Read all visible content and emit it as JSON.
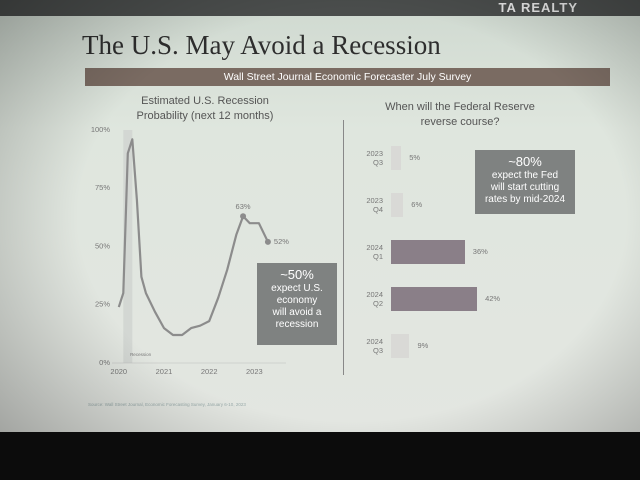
{
  "header": {
    "logo": "TA REALTY",
    "title": "The U.S. May Avoid a Recession",
    "banner": "Wall Street Journal Economic Forecaster July Survey"
  },
  "chart_data": [
    {
      "type": "line",
      "title": "Estimated U.S. Recession\nProbability (next 12 months)",
      "x": [
        2020.0,
        2020.1,
        2020.2,
        2020.3,
        2020.4,
        2020.5,
        2020.6,
        2020.8,
        2021.0,
        2021.2,
        2021.4,
        2021.6,
        2021.8,
        2022.0,
        2022.2,
        2022.4,
        2022.6,
        2022.75,
        2022.9,
        2023.1,
        2023.3
      ],
      "series": [
        {
          "name": "Recession probability",
          "color": "#8c8c8c",
          "values": [
            24,
            30,
            90,
            96,
            70,
            37,
            30,
            22,
            15,
            12,
            12,
            15,
            16,
            18,
            28,
            40,
            55,
            63,
            60,
            60,
            52
          ],
          "value_labels": [
            null,
            null,
            null,
            null,
            null,
            null,
            null,
            null,
            null,
            null,
            null,
            null,
            null,
            null,
            null,
            null,
            null,
            "63%",
            null,
            null,
            "52%"
          ]
        }
      ],
      "xlim": [
        2019.85,
        2023.7
      ],
      "xticks": [
        2020,
        2021,
        2022,
        2023
      ],
      "ylim": [
        0,
        100
      ],
      "yticks": [
        {
          "value": 0,
          "label": "0%"
        },
        {
          "value": 25,
          "label": "25%"
        },
        {
          "value": 50,
          "label": "50%"
        },
        {
          "value": 75,
          "label": "75%"
        },
        {
          "value": 100,
          "label": "100%"
        }
      ],
      "annotation": "Recession"
    },
    {
      "type": "hbar",
      "title": "When will the Federal Reserve\nreverse course?",
      "categories": [
        "2023\nQ3",
        "2023\nQ4",
        "2024\nQ1",
        "2024\nQ2",
        "2024\nQ3"
      ],
      "values": [
        5,
        6,
        36,
        42,
        9
      ],
      "value_labels": [
        "5%",
        "6%",
        "36%",
        "42%",
        "9%"
      ],
      "colors": [
        "#d9d9d6",
        "#d9d9d6",
        "#8a7f88",
        "#8a7f88",
        "#d9d9d6"
      ]
    }
  ],
  "callouts": [
    {
      "lines": [
        "~50%",
        "expect U.S.",
        "economy",
        "will avoid a",
        "recession"
      ]
    },
    {
      "lines": [
        "~80%",
        "expect the Fed",
        "will start cutting",
        "rates by mid-2024"
      ]
    }
  ],
  "footer": {
    "source": "Source: Wall Street Journal, Economic Forecasting Survey, January 6-10, 2023"
  }
}
